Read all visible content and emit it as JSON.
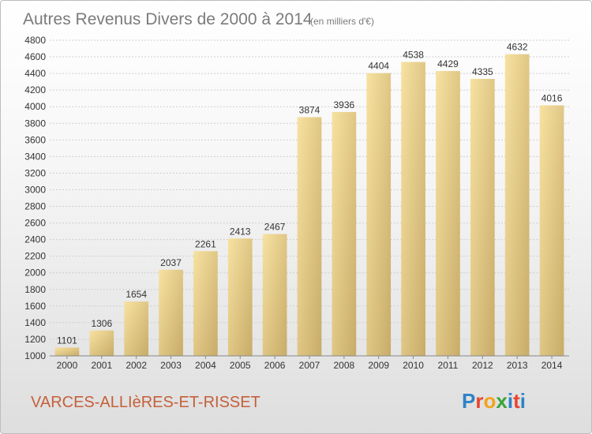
{
  "chart_data": {
    "type": "bar",
    "title": "Autres Revenus Divers de 2000 à 2014",
    "subtitle": "(en milliers d'€)",
    "categories": [
      "2000",
      "2001",
      "2002",
      "2003",
      "2004",
      "2005",
      "2006",
      "2007",
      "2008",
      "2009",
      "2010",
      "2011",
      "2012",
      "2013",
      "2014"
    ],
    "values": [
      1101,
      1306,
      1654,
      2037,
      2261,
      2413,
      2467,
      3874,
      3936,
      4404,
      4538,
      4429,
      4335,
      4632,
      4016
    ],
    "ylim": [
      1000,
      4800
    ],
    "yticks": [
      1000,
      1200,
      1400,
      1600,
      1800,
      2000,
      2200,
      2400,
      2600,
      2800,
      3000,
      3200,
      3400,
      3600,
      3800,
      4000,
      4200,
      4400,
      4600,
      4800
    ],
    "grid": true,
    "bar_color_light": "#f7e2a2",
    "bar_color_dark": "#c8ab68"
  },
  "footer": {
    "place": "VARCES-ALLIèRES-ET-RISSET"
  },
  "logo": {
    "text": "Proxiti",
    "letters": [
      "P",
      "r",
      "o",
      "x",
      "i",
      "t",
      "i"
    ],
    "colors": [
      "#2f82c6",
      "#e8452f",
      "#f3a21d",
      "#3aa53a",
      "#2f82c6",
      "#e8452f",
      "#2f82c6"
    ]
  }
}
